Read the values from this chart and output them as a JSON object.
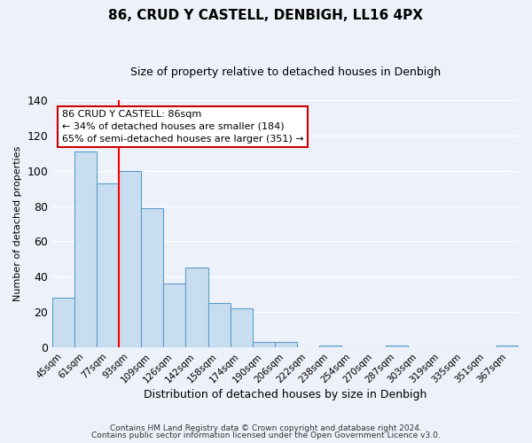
{
  "title": "86, CRUD Y CASTELL, DENBIGH, LL16 4PX",
  "subtitle": "Size of property relative to detached houses in Denbigh",
  "xlabel": "Distribution of detached houses by size in Denbigh",
  "ylabel": "Number of detached properties",
  "footer_line1": "Contains HM Land Registry data © Crown copyright and database right 2024.",
  "footer_line2": "Contains public sector information licensed under the Open Government Licence v3.0.",
  "bin_labels": [
    "45sqm",
    "61sqm",
    "77sqm",
    "93sqm",
    "109sqm",
    "126sqm",
    "142sqm",
    "158sqm",
    "174sqm",
    "190sqm",
    "206sqm",
    "222sqm",
    "238sqm",
    "254sqm",
    "270sqm",
    "287sqm",
    "303sqm",
    "319sqm",
    "335sqm",
    "351sqm",
    "367sqm"
  ],
  "bar_heights": [
    28,
    111,
    93,
    100,
    79,
    36,
    45,
    25,
    22,
    3,
    3,
    0,
    1,
    0,
    0,
    1,
    0,
    0,
    0,
    0,
    1
  ],
  "bar_color": "#c9ddf0",
  "bar_edge_color": "#5b9ec9",
  "red_line_bin_index": 2,
  "annotation_title": "86 CRUD Y CASTELL: 86sqm",
  "annotation_line1": "← 34% of detached houses are smaller (184)",
  "annotation_line2": "65% of semi-detached houses are larger (351) →",
  "annotation_box_fill": "#ffffff",
  "annotation_box_edge": "#cc0000",
  "ylim_max": 140,
  "yticks": [
    0,
    20,
    40,
    60,
    80,
    100,
    120,
    140
  ],
  "background_color": "#edf1f9",
  "grid_color": "#ffffff",
  "title_fontsize": 11,
  "subtitle_fontsize": 9,
  "ylabel_fontsize": 8,
  "xlabel_fontsize": 9,
  "tick_fontsize": 7.5,
  "annotation_fontsize": 8,
  "footer_fontsize": 6.5
}
